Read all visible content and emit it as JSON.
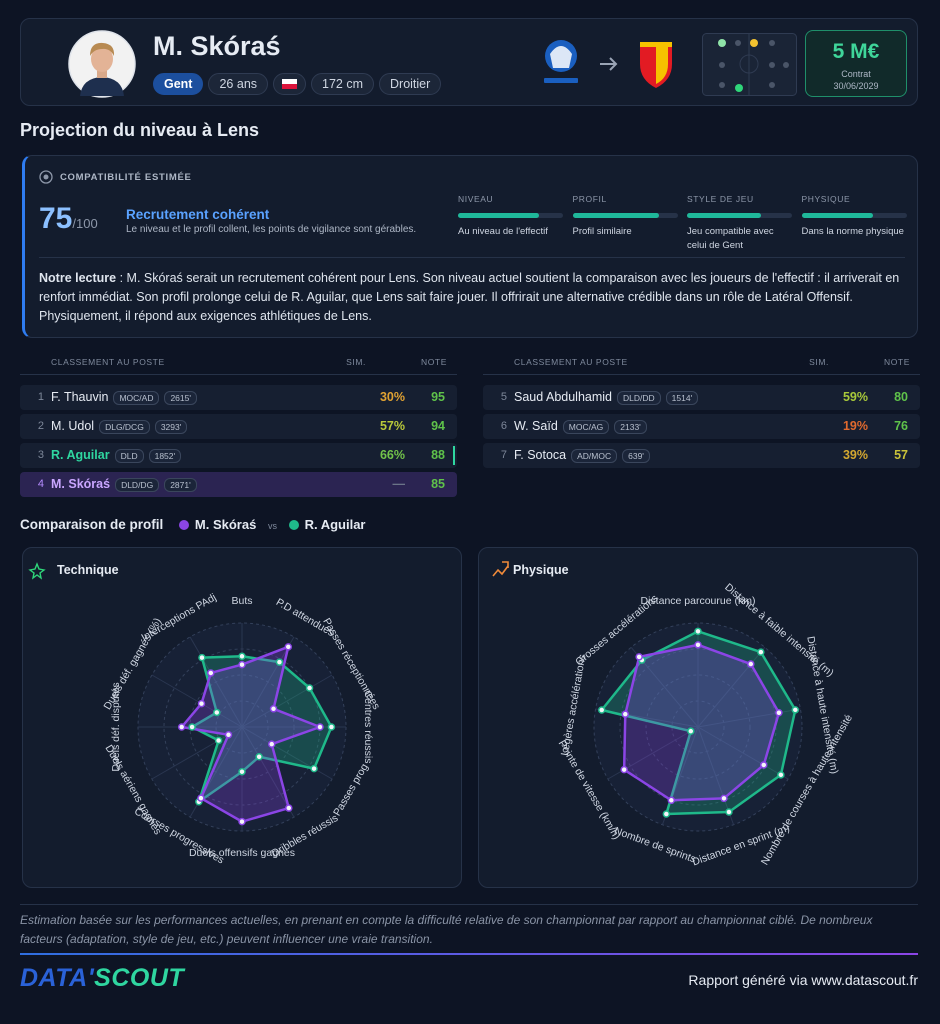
{
  "header": {
    "name": "M. Skóraś",
    "club": "Gent",
    "age": "26 ans",
    "height": "172 cm",
    "foot": "Droitier",
    "value": "5 M€",
    "contract_label": "Contrat",
    "contract_date": "30/06/2029"
  },
  "section_title": "Projection du niveau à Lens",
  "compatibility": {
    "label": "COMPATIBILITÉ ESTIMÉE",
    "score": 75,
    "score_suffix": "/100",
    "verdict": "Recrutement cohérent",
    "summary": "Le niveau et le profil collent, les points de vigilance sont gérables.",
    "bar_lim": [
      0,
      100
    ],
    "bar_color": "#1fb89a",
    "criteria": [
      {
        "label": "NIVEAU",
        "value": 77,
        "note": "Au niveau de l'effectif"
      },
      {
        "label": "PROFIL",
        "value": 82,
        "note": "Profil similaire"
      },
      {
        "label": "STYLE DE JEU",
        "value": 70,
        "note": "Jeu compatible avec celui de Gent"
      },
      {
        "label": "PHYSIQUE",
        "value": 68,
        "note": "Dans la norme physique"
      }
    ],
    "reading_label": "Notre lecture",
    "reading_text": ": M. Skóraś serait un recrutement cohérent pour Lens. Son niveau actuel soutient la comparaison avec les joueurs de l'effectif : il arriverait en renfort immédiat. Son profil prolonge celui de R. Aguilar, que Lens sait faire jouer. Il offrirait une alternative crédible dans un rôle de Latéral Offensif. Physiquement, il répond aux exigences athlétiques de Lens."
  },
  "ranking": {
    "columns": {
      "title": "CLASSEMENT AU POSTE",
      "sim": "SIM.",
      "note": "NOTE"
    },
    "tables": [
      [
        {
          "rank": 1,
          "name": "F. Thauvin",
          "tags": [
            "MOC/AD",
            "2615'"
          ],
          "sim": "30%",
          "note": 95,
          "sim_color": "#e0a232",
          "note_color": "#5fc24a"
        },
        {
          "rank": 2,
          "name": "M. Udol",
          "tags": [
            "DLG/DCG",
            "3293'"
          ],
          "sim": "57%",
          "note": 94,
          "sim_color": "#b9c93a",
          "note_color": "#5fc24a"
        },
        {
          "rank": 3,
          "name": "R. Aguilar",
          "tags": [
            "DLD",
            "1852'"
          ],
          "sim": "66%",
          "note": 88,
          "sim_color": "#72c24a",
          "note_color": "#5fc24a",
          "highlight": "reference"
        },
        {
          "rank": 4,
          "name": "M. Skóraś",
          "tags": [
            "DLD/DG",
            "2871'"
          ],
          "sim": "—",
          "note": 85,
          "sim_color": "#6b7488",
          "note_color": "#5fc24a",
          "highlight": "player"
        }
      ],
      [
        {
          "rank": 5,
          "name": "Saud Abdulhamid",
          "tags": [
            "DLD/DD",
            "1514'"
          ],
          "sim": "59%",
          "note": 80,
          "sim_color": "#a8c83a",
          "note_color": "#5fc24a"
        },
        {
          "rank": 6,
          "name": "W. Saïd",
          "tags": [
            "MOC/AG",
            "2133'"
          ],
          "sim": "19%",
          "note": 76,
          "sim_color": "#e0692e",
          "note_color": "#5fc24a"
        },
        {
          "rank": 7,
          "name": "F. Sotoca",
          "tags": [
            "AD/MOC",
            "639'"
          ],
          "sim": "39%",
          "note": 57,
          "sim_color": "#d4a830",
          "note_color": "#c9c23a"
        }
      ]
    ]
  },
  "comparison": {
    "title": "Comparaison de profil",
    "vs": "vs"
  },
  "chart_data": [
    {
      "type": "radar",
      "title": "Technique",
      "axes": [
        "Buts",
        "P.D attendues",
        "Passes réceptionnées",
        "Centres réussis",
        "Passes prog",
        "Dribbles réussis",
        "Duels offensifs gagnés",
        "Courses progressives",
        "Duels aériens gagnés",
        "Duels déf. disputés",
        "Duels déf. gagnés (%)",
        "Interceptions PAdj"
      ],
      "rlim": [
        0,
        100
      ],
      "rticks": [
        25,
        50,
        75,
        100
      ],
      "series": [
        {
          "name": "M. Skóraś",
          "color": "#8b45e6",
          "values": [
            60,
            89,
            35,
            75,
            33,
            90,
            91,
            79,
            15,
            58,
            45,
            60
          ]
        },
        {
          "name": "R. Aguilar",
          "color": "#1fb98a",
          "values": [
            68,
            72,
            75,
            86,
            80,
            33,
            43,
            83,
            26,
            48,
            28,
            77
          ]
        }
      ]
    },
    {
      "type": "radar",
      "title": "Physique",
      "axes": [
        "Distance parcourue (km)",
        "Distance à faible intensité (m)",
        "Distance à haute intensité (m)",
        "Nombre de courses à haute intensité",
        "Distance en sprint (m)",
        "Nombre de sprints",
        "Pointe de vitesse (km/h)",
        "Légères accélérations",
        "Grosses accélérations"
      ],
      "rlim": [
        0,
        100
      ],
      "rticks": [
        25,
        50,
        75,
        100
      ],
      "series": [
        {
          "name": "M. Skóraś",
          "color": "#8b45e6",
          "values": [
            79,
            79,
            79,
            73,
            73,
            75,
            82,
            71,
            88
          ]
        },
        {
          "name": "R. Aguilar",
          "color": "#1fb98a",
          "values": [
            92,
            94,
            95,
            92,
            87,
            89,
            8,
            94,
            84
          ]
        }
      ]
    }
  ],
  "footer": {
    "disclaimer": "Estimation basée sur les performances actuelles, en prenant en compte la difficulté relative de son championnat par rapport au championnat ciblé. De nombreux facteurs (adaptation, style de jeu, etc.) peuvent influencer une vraie transition.",
    "brand": [
      "DATA'",
      "SCOUT"
    ],
    "generated": "Rapport généré via www.datascout.fr"
  }
}
